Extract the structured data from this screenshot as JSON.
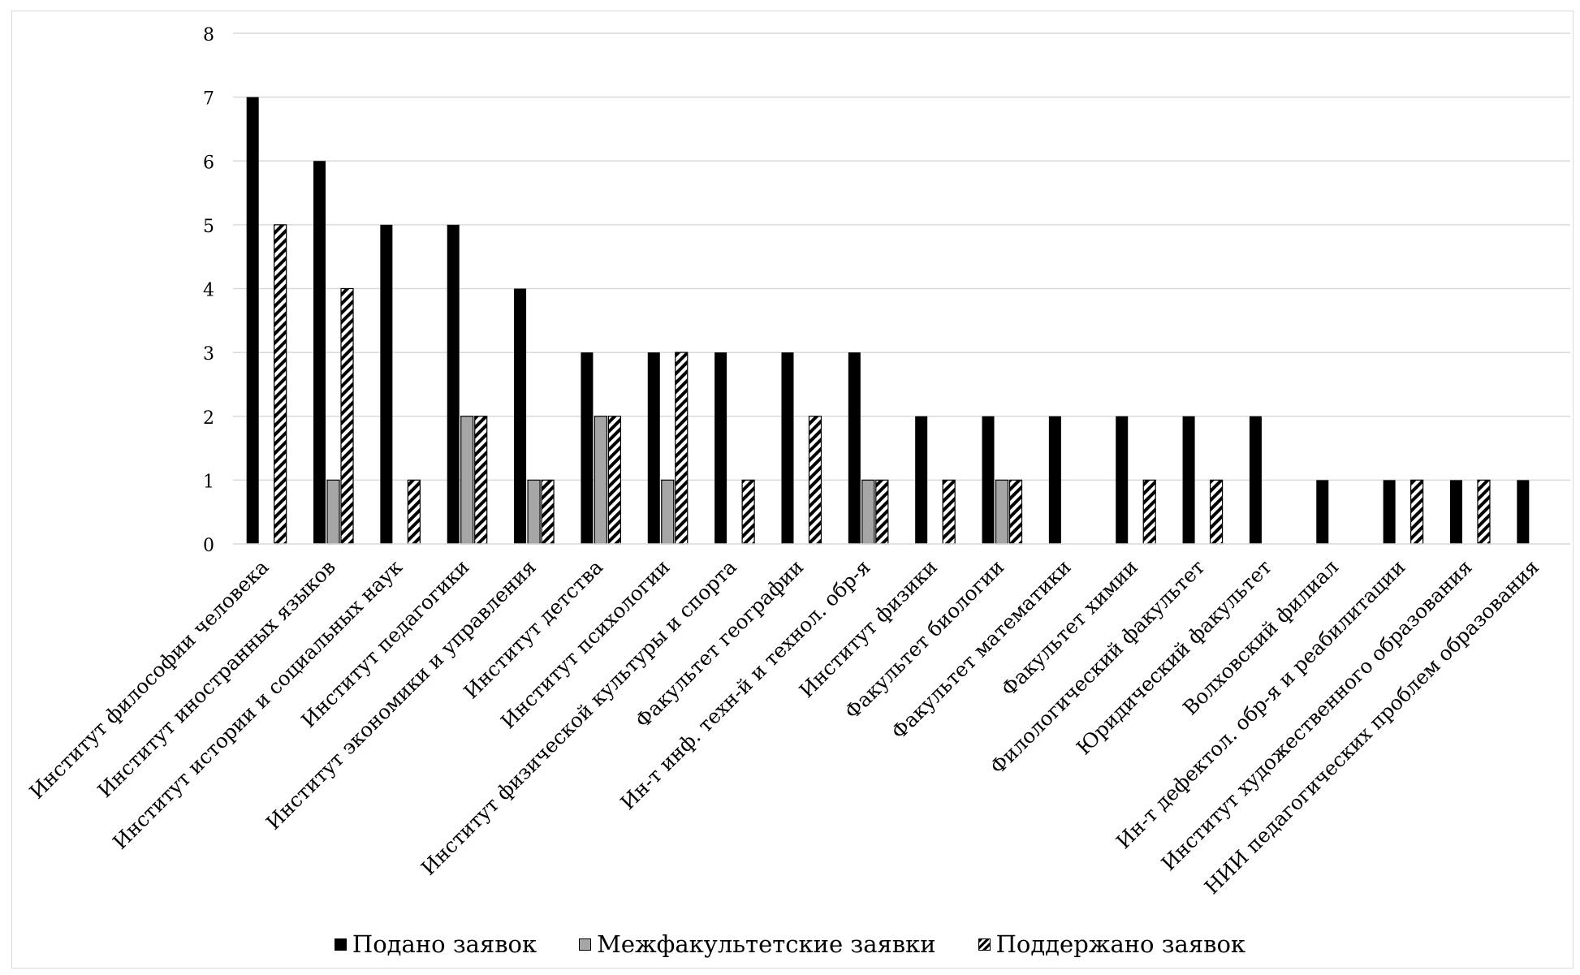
{
  "chart_data": {
    "type": "bar",
    "title": "",
    "xlabel": "",
    "ylabel": "",
    "ylim": [
      0,
      8
    ],
    "yticks": [
      "0",
      "1",
      "2",
      "3",
      "4",
      "5",
      "6",
      "7",
      "8"
    ],
    "grid": true,
    "legend_position": "bottom",
    "categories": [
      "Институт философии человека",
      "Институт иностранных языков",
      "Институт истории и социальных наук",
      "Институт педагогики",
      "Институт экономики и управления",
      "Институт детства",
      "Институт психологии",
      "Институт физической культуры и спорта",
      "Факультет географии",
      "Ин-т инф. техн-й и технол. обр-я",
      "Институт физики",
      "Факультет биологии",
      "Факультет математики",
      "Факультет химии",
      "Филологический факультет",
      "Юридический факультет",
      "Волховский филиал",
      "Ин-т дефектол. обр-я и реабилитации",
      "Институт художественного образования",
      "НИИ педагогических проблем образования"
    ],
    "series": [
      {
        "name": "Подано заявок",
        "color": "#000000",
        "pattern": "solid",
        "values": [
          7,
          6,
          5,
          5,
          4,
          3,
          3,
          3,
          3,
          3,
          2,
          2,
          2,
          2,
          2,
          2,
          1,
          1,
          1,
          1
        ]
      },
      {
        "name": "Межфакультетские заявки",
        "color": "#a6a6a6",
        "pattern": "solid",
        "values": [
          0,
          1,
          0,
          2,
          1,
          2,
          1,
          0,
          0,
          1,
          0,
          1,
          0,
          0,
          0,
          0,
          0,
          0,
          0,
          0
        ]
      },
      {
        "name": "Поддержано заявок",
        "color": "#000000",
        "pattern": "diagonal-hatch",
        "values": [
          5,
          4,
          1,
          2,
          1,
          2,
          3,
          1,
          2,
          1,
          1,
          1,
          0,
          1,
          1,
          0,
          0,
          1,
          1,
          0
        ]
      }
    ]
  }
}
